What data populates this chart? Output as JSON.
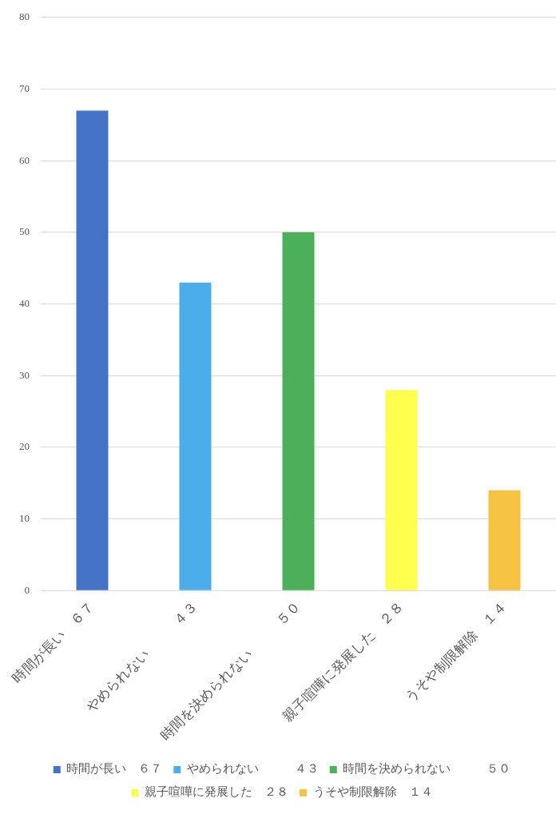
{
  "chart_data": {
    "type": "bar",
    "categories": [
      "時間が長い　６７",
      "やめられない　　　４３",
      "時間を決められない　　　５０",
      "親子喧嘩に発展した　２８",
      "うそや制限解除　１４"
    ],
    "series": [
      {
        "name": "時間が長い　６７",
        "color": "#4472c4",
        "values": [
          67,
          null,
          null,
          null,
          null
        ]
      },
      {
        "name": "やめられない　　　４３",
        "color": "#4baeea",
        "values": [
          null,
          43,
          null,
          null,
          null
        ]
      },
      {
        "name": "時間を決められない　　　５０",
        "color": "#4caf5a",
        "values": [
          null,
          null,
          50,
          null,
          null
        ]
      },
      {
        "name": "親子喧嘩に発展した　２８",
        "color": "#ffff4d",
        "values": [
          null,
          null,
          null,
          28,
          null
        ]
      },
      {
        "name": "うそや制限解除　１４",
        "color": "#f5c242",
        "values": [
          null,
          null,
          null,
          null,
          14
        ]
      }
    ],
    "ylim": [
      0,
      80
    ],
    "yticks": [
      0,
      10,
      20,
      30,
      40,
      50,
      60,
      70,
      80
    ],
    "grid": "y",
    "legend": "bottom"
  }
}
